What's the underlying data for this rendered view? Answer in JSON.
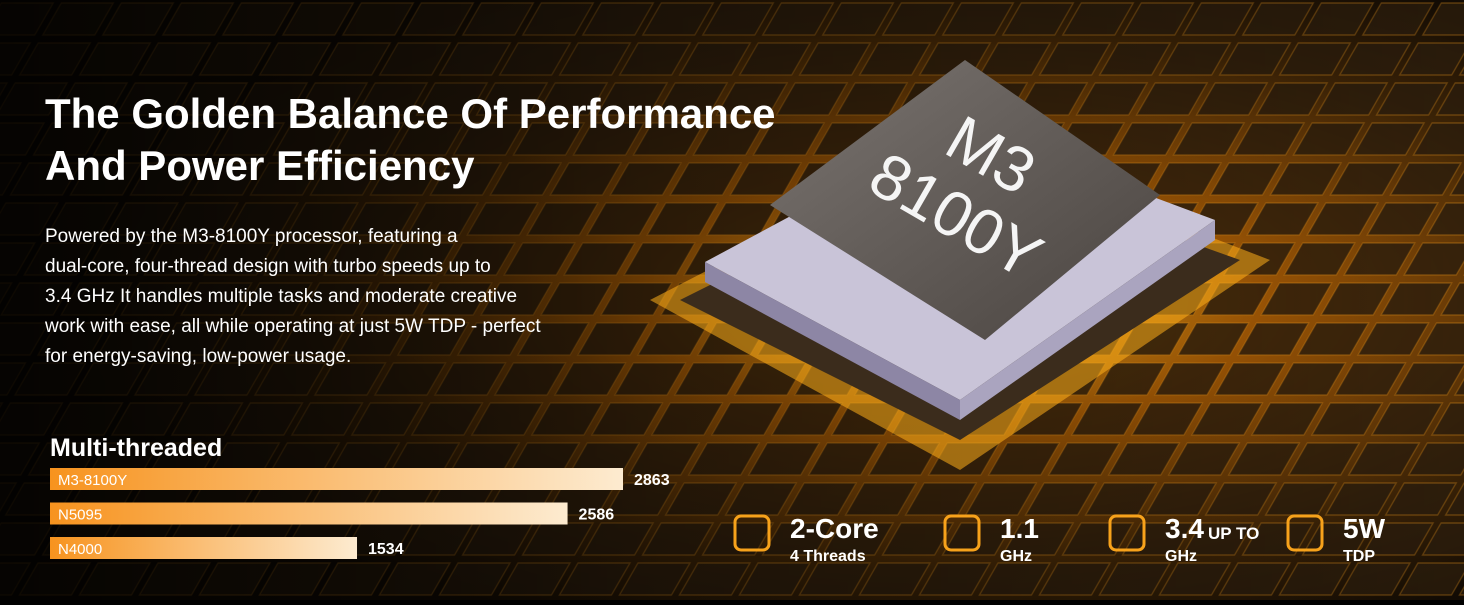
{
  "title": [
    "The Golden Balance Of Performance",
    "And Power Efficiency"
  ],
  "description": [
    "Powered by the M3-8100Y processor, featuring a",
    "dual-core, four-thread design with turbo speeds up to",
    "3.4 GHz It handles multiple tasks and moderate creative",
    "work with ease, all while operating at just 5W TDP - perfect",
    "for energy-saving, low-power usage."
  ],
  "chip_label": [
    "M3",
    "8100Y"
  ],
  "chart_data": {
    "type": "bar",
    "orientation": "horizontal",
    "title": "Multi-threaded",
    "categories": [
      "M3-8100Y",
      "N5095",
      "N4000"
    ],
    "values": [
      2863,
      2586,
      1534
    ],
    "color": [
      "#f7931e",
      "#fdebd0"
    ]
  },
  "specs": [
    {
      "main": "2-Core",
      "sub": "4 Threads"
    },
    {
      "main": "1.1",
      "sub": "GHz"
    },
    {
      "main": "3.4",
      "note": "UP TO",
      "sub": "GHz"
    },
    {
      "main": "5W",
      "sub": "TDP"
    }
  ]
}
